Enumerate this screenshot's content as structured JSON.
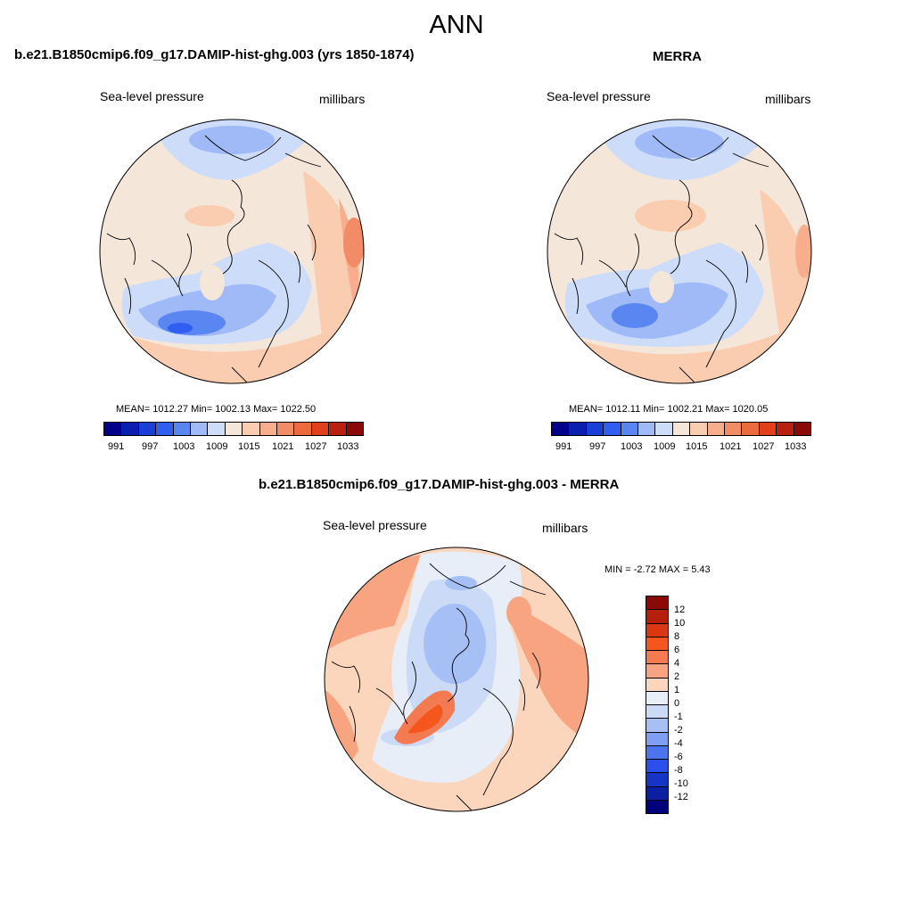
{
  "title": "ANN",
  "panels": {
    "left": {
      "title": "b.e21.B1850cmip6.f09_g17.DAMIP-hist-ghg.003 (yrs 1850-1874)",
      "variable": "Sea-level pressure",
      "units": "millibars",
      "stats": "MEAN= 1012.27  Min= 1002.13  Max= 1022.50"
    },
    "right": {
      "title": "MERRA",
      "variable": "Sea-level pressure",
      "units": "millibars",
      "stats": "MEAN= 1012.11  Min= 1002.21  Max= 1020.05"
    },
    "diff": {
      "title": "b.e21.B1850cmip6.f09_g17.DAMIP-hist-ghg.003 - MERRA",
      "variable": "Sea-level pressure",
      "units": "millibars",
      "stats": "MIN =  -2.72 MAX =   5.43"
    }
  },
  "colorbar_abs": {
    "colors": [
      "#00008b",
      "#0a1fb0",
      "#1a3fd8",
      "#2f5ef0",
      "#5a86f2",
      "#9fbaf7",
      "#cddcf8",
      "#f5e6da",
      "#fbcdb0",
      "#f8ad8c",
      "#f28c67",
      "#eb6a3e",
      "#e2401b",
      "#b9200f",
      "#8b0a08"
    ],
    "labels": [
      "991",
      "997",
      "1003",
      "1009",
      "1015",
      "1021",
      "1027",
      "1033"
    ]
  },
  "colorbar_diff": {
    "colors": [
      "#8b0a08",
      "#b61f0c",
      "#dc3713",
      "#f4561e",
      "#f47b51",
      "#f8a481",
      "#fbd6bc",
      "#e8eef8",
      "#cbdaf6",
      "#a6c0f5",
      "#7e9ff2",
      "#4d74ef",
      "#2a4fea",
      "#1634c5",
      "#0b1fa3",
      "#00007c"
    ],
    "labels": [
      "12",
      "10",
      "8",
      "6",
      "4",
      "2",
      "1",
      "0",
      "-1",
      "-2",
      "-4",
      "-6",
      "-8",
      "-10",
      "-12"
    ]
  }
}
